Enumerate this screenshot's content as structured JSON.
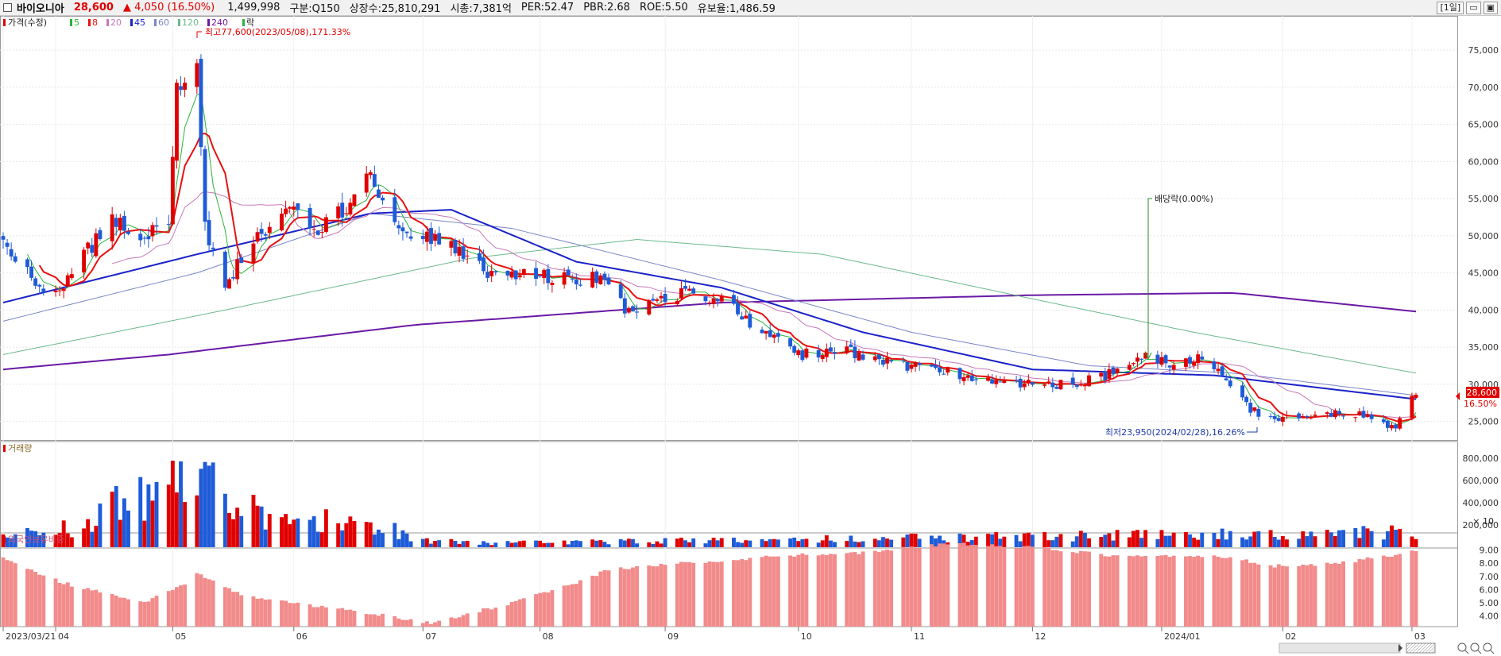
{
  "header": {
    "stock_name": "바이오니아",
    "price": "28,600",
    "change_arrow": "▲",
    "change": "4,050",
    "change_pct": "(16.50%)",
    "volume": "1,499,998",
    "market": "구분:Q150",
    "shares": "상장수:25,810,291",
    "market_cap": "시총:7,381억",
    "per": "PER:52.47",
    "pbr": "PBR:2.68",
    "roe": "ROE:5.50",
    "float": "유보율:1,486.59",
    "period_button": "[1일]",
    "btn_restore": "▭",
    "btn_close": "▣"
  },
  "legend": {
    "price_label": "가격(수정)",
    "ma": [
      {
        "label": "5",
        "color": "#2bb33a"
      },
      {
        "label": "8",
        "color": "#e81111"
      },
      {
        "label": "20",
        "color": "#c678b8"
      },
      {
        "label": "45",
        "color": "#1a22c8"
      },
      {
        "label": "60",
        "color": "#7a86c8"
      },
      {
        "label": "120",
        "color": "#6cba8c"
      },
      {
        "label": "240",
        "color": "#6a1aa5"
      }
    ],
    "drop_label": "락",
    "volume_label": "거래량",
    "foreign_label": "외국인보유비중"
  },
  "annotations": {
    "high": "최고77,600(2023/05/08),171.33%",
    "low": "최저23,950(2024/02/28),16.26%",
    "dividend": "배당락(0.00%)"
  },
  "price_tag": {
    "price": "28,600",
    "pct": "16.50%"
  },
  "volume_unit": "× 10",
  "chart_data": {
    "type": "candlestick",
    "x_start": "2023/03/21",
    "x_end": "2024/03/05",
    "x_tick_labels": [
      "2023/03/21",
      "04",
      "05",
      "06",
      "07",
      "08",
      "09",
      "10",
      "11",
      "12",
      "2024/01",
      "02",
      "03"
    ],
    "price_axis": {
      "ticks": [
        25000,
        30000,
        35000,
        40000,
        45000,
        50000,
        55000,
        60000,
        65000,
        70000,
        75000
      ],
      "range": [
        22500,
        79500
      ]
    },
    "volume_axis": {
      "ticks": [
        200000,
        400000,
        600000,
        800000
      ],
      "range": [
        0,
        900000
      ]
    },
    "foreign_axis": {
      "ticks": [
        4.0,
        5.0,
        6.0,
        7.0,
        8.0,
        9.0
      ],
      "range": [
        3.2,
        10.0
      ]
    },
    "close_anchors": [
      {
        "date": "2023/03/21",
        "close": 49500
      },
      {
        "date": "2023/03/28",
        "close": 44000
      },
      {
        "date": "2023/04/03",
        "close": 42000
      },
      {
        "date": "2023/04/10",
        "close": 47500
      },
      {
        "date": "2023/04/17",
        "close": 52000
      },
      {
        "date": "2023/04/24",
        "close": 50000
      },
      {
        "date": "2023/05/01",
        "close": 52000
      },
      {
        "date": "2023/05/03",
        "close": 70000
      },
      {
        "date": "2023/05/08",
        "close": 74000
      },
      {
        "date": "2023/05/10",
        "close": 51000
      },
      {
        "date": "2023/05/15",
        "close": 43500
      },
      {
        "date": "2023/05/22",
        "close": 49000
      },
      {
        "date": "2023/05/31",
        "close": 54000
      },
      {
        "date": "2023/06/07",
        "close": 51000
      },
      {
        "date": "2023/06/14",
        "close": 53500
      },
      {
        "date": "2023/06/20",
        "close": 58000
      },
      {
        "date": "2023/06/27",
        "close": 51000
      },
      {
        "date": "2023/07/04",
        "close": 49500
      },
      {
        "date": "2023/07/12",
        "close": 48000
      },
      {
        "date": "2023/07/20",
        "close": 44500
      },
      {
        "date": "2023/07/28",
        "close": 45000
      },
      {
        "date": "2023/08/08",
        "close": 44000
      },
      {
        "date": "2023/08/16",
        "close": 44500
      },
      {
        "date": "2023/08/23",
        "close": 39500
      },
      {
        "date": "2023/08/31",
        "close": 41500
      },
      {
        "date": "2023/09/08",
        "close": 42500
      },
      {
        "date": "2023/09/15",
        "close": 41500
      },
      {
        "date": "2023/09/22",
        "close": 38000
      },
      {
        "date": "2023/10/05",
        "close": 34000
      },
      {
        "date": "2023/10/16",
        "close": 34500
      },
      {
        "date": "2023/10/26",
        "close": 33000
      },
      {
        "date": "2023/11/06",
        "close": 32000
      },
      {
        "date": "2023/11/15",
        "close": 31000
      },
      {
        "date": "2023/11/24",
        "close": 30500
      },
      {
        "date": "2023/12/04",
        "close": 29800
      },
      {
        "date": "2023/12/13",
        "close": 30200
      },
      {
        "date": "2023/12/21",
        "close": 31500
      },
      {
        "date": "2023/12/28",
        "close": 34000
      },
      {
        "date": "2024/01/05",
        "close": 32500
      },
      {
        "date": "2024/01/12",
        "close": 33500
      },
      {
        "date": "2024/01/18",
        "close": 31000
      },
      {
        "date": "2024/01/24",
        "close": 26500
      },
      {
        "date": "2024/01/31",
        "close": 25300
      },
      {
        "date": "2024/02/07",
        "close": 25800
      },
      {
        "date": "2024/02/16",
        "close": 26200
      },
      {
        "date": "2024/02/23",
        "close": 25500
      },
      {
        "date": "2024/02/28",
        "close": 24300
      },
      {
        "date": "2024/02/29",
        "close": 24550
      },
      {
        "date": "2024/03/04",
        "close": 28600
      }
    ],
    "moving_average_anchors": [
      {
        "name": "240",
        "points": [
          [
            "2023/03/21",
            32000
          ],
          [
            "2023/05/01",
            34000
          ],
          [
            "2023/07/01",
            38000
          ],
          [
            "2023/09/15",
            41000
          ],
          [
            "2023/12/01",
            42000
          ],
          [
            "2024/01/20",
            42300
          ],
          [
            "2024/03/05",
            39800
          ]
        ]
      },
      {
        "name": "120",
        "points": [
          [
            "2023/03/21",
            34000
          ],
          [
            "2023/05/15",
            40000
          ],
          [
            "2023/07/15",
            47000
          ],
          [
            "2023/08/25",
            49500
          ],
          [
            "2023/10/10",
            47500
          ],
          [
            "2023/12/01",
            41500
          ],
          [
            "2024/01/10",
            37000
          ],
          [
            "2024/03/05",
            31500
          ]
        ]
      },
      {
        "name": "60",
        "points": [
          [
            "2023/03/21",
            38500
          ],
          [
            "2023/05/08",
            45000
          ],
          [
            "2023/06/20",
            53000
          ],
          [
            "2023/07/25",
            51000
          ],
          [
            "2023/09/15",
            44000
          ],
          [
            "2023/11/01",
            37000
          ],
          [
            "2023/12/15",
            32500
          ],
          [
            "2024/01/20",
            31500
          ],
          [
            "2024/03/05",
            28500
          ]
        ]
      },
      {
        "name": "45",
        "points": [
          [
            "2023/03/21",
            41000
          ],
          [
            "2023/05/08",
            47500
          ],
          [
            "2023/06/20",
            53000
          ],
          [
            "2023/07/10",
            53500
          ],
          [
            "2023/08/10",
            46500
          ],
          [
            "2023/09/15",
            43000
          ],
          [
            "2023/10/20",
            37000
          ],
          [
            "2023/12/01",
            32000
          ],
          [
            "2024/01/15",
            31200
          ],
          [
            "2024/03/05",
            28000
          ]
        ]
      }
    ],
    "foreign_ratio_anchors": [
      {
        "date": "2023/03/21",
        "value": 8.4
      },
      {
        "date": "2023/04/05",
        "value": 6.5
      },
      {
        "date": "2023/04/25",
        "value": 5.0
      },
      {
        "date": "2023/05/05",
        "value": 6.5
      },
      {
        "date": "2023/05/08",
        "value": 7.2
      },
      {
        "date": "2023/05/20",
        "value": 5.5
      },
      {
        "date": "2023/06/20",
        "value": 4.2
      },
      {
        "date": "2023/07/05",
        "value": 3.5
      },
      {
        "date": "2023/07/25",
        "value": 5.0
      },
      {
        "date": "2023/08/10",
        "value": 6.5
      },
      {
        "date": "2023/08/18",
        "value": 7.5
      },
      {
        "date": "2023/09/05",
        "value": 8.0
      },
      {
        "date": "2023/10/01",
        "value": 8.6
      },
      {
        "date": "2023/10/20",
        "value": 8.8
      },
      {
        "date": "2023/11/10",
        "value": 9.5
      },
      {
        "date": "2023/12/01",
        "value": 9.2
      },
      {
        "date": "2023/12/20",
        "value": 8.6
      },
      {
        "date": "2024/01/15",
        "value": 8.6
      },
      {
        "date": "2024/01/30",
        "value": 7.8
      },
      {
        "date": "2024/02/15",
        "value": 8.0
      },
      {
        "date": "2024/03/05",
        "value": 8.9
      }
    ],
    "volume_anchors": [
      {
        "date": "2023/03/21",
        "value": 140000
      },
      {
        "date": "2023/04/10",
        "value": 200000
      },
      {
        "date": "2023/04/17",
        "value": 460000
      },
      {
        "date": "2023/04/20",
        "value": 420000
      },
      {
        "date": "2023/05/03",
        "value": 600000
      },
      {
        "date": "2023/05/04",
        "value": 780000
      },
      {
        "date": "2023/05/08",
        "value": 780000
      },
      {
        "date": "2023/05/10",
        "value": 680000
      },
      {
        "date": "2023/05/15",
        "value": 420000
      },
      {
        "date": "2023/06/01",
        "value": 250000
      },
      {
        "date": "2023/06/20",
        "value": 260000
      },
      {
        "date": "2023/07/01",
        "value": 80000
      },
      {
        "date": "2023/07/15",
        "value": 40000
      },
      {
        "date": "2024/03/04",
        "value": 150000
      }
    ]
  }
}
